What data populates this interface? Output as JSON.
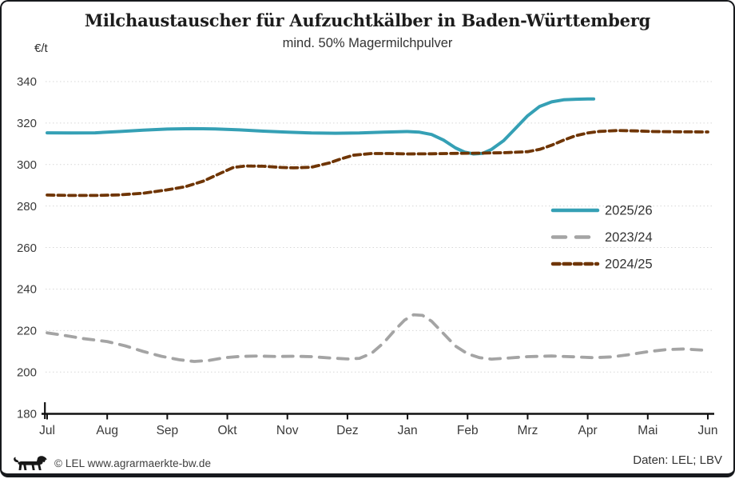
{
  "title": "Milchaustauscher für Aufzuchtkälber in Baden-Württemberg",
  "subtitle": "mind. 50% Magermilchpulver",
  "y_axis_unit": "€/t",
  "footer": {
    "logo": "baden-wuerttemberg-lion-logo",
    "copyright": "© LEL www.agrarmaerkte-bw.de",
    "source": "Daten: LEL; LBV"
  },
  "colors": {
    "series_2025_26": "#35a0b5",
    "series_2023_24": "#a4a4a4",
    "series_2024_25": "#6f3504",
    "grid": "#d7d7d7",
    "axis": "#111111",
    "text": "#3a3a3a",
    "frame": "#17191d"
  },
  "chart_data": {
    "type": "line",
    "title": "Milchaustauscher für Aufzuchtkälber in Baden-Württemberg",
    "subtitle": "mind. 50% Magermilchpulver",
    "ylabel": "€/t",
    "ylim": [
      180,
      340
    ],
    "yticks": [
      340,
      320,
      300,
      280,
      260,
      240,
      220,
      200,
      180
    ],
    "x_categories": [
      "Jul",
      "Aug",
      "Sep",
      "Okt",
      "Nov",
      "Dez",
      "Jan",
      "Feb",
      "Mrz",
      "Apr",
      "Mai",
      "Jun"
    ],
    "grid": "horizontal-dotted",
    "legend_position": "middle-right",
    "x_unit_note": "x values are month indices, 0 = Jul ... 11 = Jun",
    "series": [
      {
        "name": "2025/26",
        "color": "#35a0b5",
        "style": "solid",
        "points": [
          [
            0,
            315.3
          ],
          [
            0.4,
            315.2
          ],
          [
            0.8,
            315.3
          ],
          [
            1.2,
            315.9
          ],
          [
            1.6,
            316.6
          ],
          [
            2,
            317.1
          ],
          [
            2.4,
            317.3
          ],
          [
            2.8,
            317.2
          ],
          [
            3.2,
            316.7
          ],
          [
            3.6,
            316.1
          ],
          [
            4,
            315.6
          ],
          [
            4.4,
            315.2
          ],
          [
            4.8,
            315.1
          ],
          [
            5.2,
            315.2
          ],
          [
            5.6,
            315.6
          ],
          [
            6,
            315.9
          ],
          [
            6.2,
            315.6
          ],
          [
            6.4,
            314.5
          ],
          [
            6.6,
            311.8
          ],
          [
            6.8,
            308.0
          ],
          [
            6.95,
            306.0
          ],
          [
            7.1,
            305.1
          ],
          [
            7.25,
            305.4
          ],
          [
            7.4,
            307.3
          ],
          [
            7.6,
            311.5
          ],
          [
            7.8,
            317.5
          ],
          [
            8,
            323.5
          ],
          [
            8.2,
            328.0
          ],
          [
            8.4,
            330.2
          ],
          [
            8.6,
            331.2
          ],
          [
            8.8,
            331.5
          ],
          [
            9,
            331.6
          ],
          [
            9.1,
            331.6
          ]
        ]
      },
      {
        "name": "2023/24",
        "color": "#a4a4a4",
        "style": "dashed-long",
        "points": [
          [
            0,
            218.9
          ],
          [
            0.3,
            217.6
          ],
          [
            0.6,
            216.1
          ],
          [
            1,
            214.7
          ],
          [
            1.3,
            212.6
          ],
          [
            1.6,
            209.9
          ],
          [
            1.9,
            207.6
          ],
          [
            2.2,
            205.9
          ],
          [
            2.45,
            205.1
          ],
          [
            2.7,
            205.6
          ],
          [
            2.95,
            206.9
          ],
          [
            3.2,
            207.5
          ],
          [
            3.5,
            207.7
          ],
          [
            3.8,
            207.5
          ],
          [
            4.1,
            207.6
          ],
          [
            4.4,
            207.4
          ],
          [
            4.7,
            206.8
          ],
          [
            5,
            206.3
          ],
          [
            5.2,
            206.6
          ],
          [
            5.4,
            209.0
          ],
          [
            5.6,
            214.0
          ],
          [
            5.8,
            220.5
          ],
          [
            5.95,
            225.0
          ],
          [
            6.1,
            227.6
          ],
          [
            6.25,
            227.3
          ],
          [
            6.4,
            224.5
          ],
          [
            6.6,
            218.5
          ],
          [
            6.8,
            212.5
          ],
          [
            7,
            208.8
          ],
          [
            7.2,
            206.9
          ],
          [
            7.4,
            206.2
          ],
          [
            7.7,
            206.8
          ],
          [
            8,
            207.4
          ],
          [
            8.4,
            207.7
          ],
          [
            8.8,
            207.3
          ],
          [
            9.1,
            206.9
          ],
          [
            9.4,
            207.3
          ],
          [
            9.7,
            208.4
          ],
          [
            10,
            209.8
          ],
          [
            10.3,
            210.8
          ],
          [
            10.6,
            211.1
          ],
          [
            11,
            210.4
          ]
        ]
      },
      {
        "name": "2024/25",
        "color": "#6f3504",
        "style": "dashed-short",
        "points": [
          [
            0,
            285.3
          ],
          [
            0.4,
            285.1
          ],
          [
            0.8,
            285.1
          ],
          [
            1.2,
            285.4
          ],
          [
            1.6,
            286.2
          ],
          [
            2,
            287.8
          ],
          [
            2.3,
            289.3
          ],
          [
            2.6,
            292.0
          ],
          [
            2.9,
            296.0
          ],
          [
            3.1,
            298.6
          ],
          [
            3.3,
            299.3
          ],
          [
            3.6,
            299.2
          ],
          [
            3.9,
            298.6
          ],
          [
            4.1,
            298.4
          ],
          [
            4.4,
            298.7
          ],
          [
            4.7,
            300.8
          ],
          [
            4.9,
            302.8
          ],
          [
            5.1,
            304.5
          ],
          [
            5.4,
            305.3
          ],
          [
            5.7,
            305.3
          ],
          [
            6,
            305.1
          ],
          [
            6.4,
            305.2
          ],
          [
            6.8,
            305.4
          ],
          [
            7.2,
            305.5
          ],
          [
            7.6,
            305.7
          ],
          [
            8,
            306.2
          ],
          [
            8.2,
            307.3
          ],
          [
            8.4,
            309.3
          ],
          [
            8.6,
            311.8
          ],
          [
            8.8,
            313.9
          ],
          [
            9,
            315.2
          ],
          [
            9.2,
            316.0
          ],
          [
            9.5,
            316.4
          ],
          [
            9.8,
            316.2
          ],
          [
            10.1,
            315.9
          ],
          [
            10.5,
            315.8
          ],
          [
            11,
            315.7
          ]
        ]
      }
    ]
  }
}
